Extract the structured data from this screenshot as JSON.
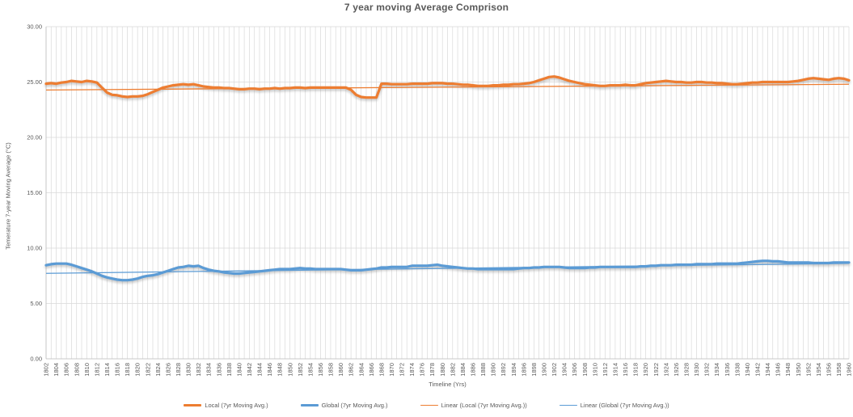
{
  "colors": {
    "local_series": "#ED7D31",
    "global_series": "#5B9BD5",
    "gridline": "#D9D9D9",
    "axis_line": "#BFBFBF",
    "text": "#595959"
  },
  "chart_data": {
    "type": "line",
    "title": "7 year moving Average Comprison",
    "xlabel": "Timeline (Yrs)",
    "ylabel": "Temerature 7-year Moving Average (°C)",
    "x_start": 1802,
    "x_end": 1960,
    "x_step": 1,
    "ylim": [
      0,
      30
    ],
    "ytick_step": 5,
    "y_ticks": [
      "0.00",
      "5.00",
      "10.00",
      "15.00",
      "20.00",
      "25.00",
      "30.00"
    ],
    "x_ticks": [
      "1802",
      "1804",
      "1806",
      "1808",
      "1810",
      "1812",
      "1814",
      "1816",
      "1818",
      "1820",
      "1822",
      "1824",
      "1826",
      "1828",
      "1830",
      "1832",
      "1834",
      "1836",
      "1838",
      "1840",
      "1842",
      "1844",
      "1846",
      "1848",
      "1850",
      "1852",
      "1854",
      "1856",
      "1858",
      "1860",
      "1862",
      "1864",
      "1866",
      "1868",
      "1870",
      "1872",
      "1874",
      "1876",
      "1878",
      "1880",
      "1882",
      "1884",
      "1886",
      "1888",
      "1890",
      "1892",
      "1894",
      "1896",
      "1898",
      "1900",
      "1902",
      "1904",
      "1906",
      "1908",
      "1910",
      "1912",
      "1914",
      "1916",
      "1918",
      "1920",
      "1922",
      "1924",
      "1926",
      "1928",
      "1930",
      "1932",
      "1934",
      "1936",
      "1938",
      "1940",
      "1942",
      "1944",
      "1946",
      "1948",
      "1950",
      "1952",
      "1954",
      "1956",
      "1958",
      "1960"
    ],
    "grid": true,
    "legend_position": "bottom",
    "series": [
      {
        "name": "Local (7yr Moving Avg.)",
        "color": "#ED7D31",
        "line_width": 3.2,
        "values": [
          24.85,
          24.9,
          24.85,
          24.95,
          25.0,
          25.1,
          25.05,
          25.0,
          25.1,
          25.05,
          24.95,
          24.5,
          24.05,
          23.85,
          23.8,
          23.7,
          23.65,
          23.7,
          23.7,
          23.75,
          23.9,
          24.1,
          24.3,
          24.5,
          24.6,
          24.7,
          24.75,
          24.8,
          24.75,
          24.8,
          24.7,
          24.6,
          24.55,
          24.5,
          24.5,
          24.45,
          24.45,
          24.4,
          24.35,
          24.35,
          24.4,
          24.4,
          24.35,
          24.4,
          24.4,
          24.45,
          24.4,
          24.45,
          24.45,
          24.5,
          24.5,
          24.45,
          24.5,
          24.5,
          24.5,
          24.5,
          24.5,
          24.5,
          24.5,
          24.5,
          24.3,
          23.85,
          23.65,
          23.6,
          23.6,
          23.6,
          24.85,
          24.85,
          24.8,
          24.8,
          24.8,
          24.8,
          24.85,
          24.85,
          24.85,
          24.85,
          24.9,
          24.9,
          24.9,
          24.85,
          24.85,
          24.8,
          24.75,
          24.75,
          24.7,
          24.65,
          24.65,
          24.65,
          24.7,
          24.7,
          24.75,
          24.75,
          24.8,
          24.8,
          24.85,
          24.9,
          25.0,
          25.15,
          25.3,
          25.45,
          25.5,
          25.4,
          25.25,
          25.1,
          25.0,
          24.9,
          24.8,
          24.75,
          24.7,
          24.65,
          24.65,
          24.7,
          24.7,
          24.7,
          24.75,
          24.7,
          24.7,
          24.8,
          24.9,
          24.95,
          25.0,
          25.05,
          25.1,
          25.05,
          25.0,
          25.0,
          24.95,
          24.95,
          25.0,
          25.0,
          24.95,
          24.95,
          24.9,
          24.9,
          24.85,
          24.8,
          24.8,
          24.85,
          24.9,
          24.95,
          24.95,
          25.0,
          25.0,
          25.0,
          25.0,
          25.0,
          25.0,
          25.05,
          25.1,
          25.2,
          25.3,
          25.35,
          25.3,
          25.25,
          25.2,
          25.3,
          25.35,
          25.3,
          25.15
        ]
      },
      {
        "name": "Global (7yr Moving Avg.)",
        "color": "#5B9BD5",
        "line_width": 3.2,
        "values": [
          8.45,
          8.55,
          8.6,
          8.6,
          8.6,
          8.5,
          8.35,
          8.2,
          8.05,
          7.9,
          7.7,
          7.5,
          7.35,
          7.25,
          7.15,
          7.1,
          7.1,
          7.15,
          7.25,
          7.4,
          7.5,
          7.55,
          7.65,
          7.8,
          7.95,
          8.1,
          8.25,
          8.3,
          8.4,
          8.35,
          8.4,
          8.2,
          8.05,
          7.95,
          7.9,
          7.8,
          7.75,
          7.7,
          7.7,
          7.75,
          7.8,
          7.85,
          7.9,
          7.95,
          8.0,
          8.05,
          8.1,
          8.1,
          8.1,
          8.15,
          8.2,
          8.15,
          8.15,
          8.1,
          8.1,
          8.1,
          8.1,
          8.1,
          8.1,
          8.05,
          8.0,
          8.0,
          8.0,
          8.05,
          8.1,
          8.15,
          8.25,
          8.25,
          8.3,
          8.3,
          8.3,
          8.3,
          8.4,
          8.4,
          8.4,
          8.4,
          8.45,
          8.5,
          8.4,
          8.35,
          8.3,
          8.25,
          8.2,
          8.15,
          8.15,
          8.1,
          8.1,
          8.1,
          8.1,
          8.1,
          8.1,
          8.1,
          8.1,
          8.15,
          8.2,
          8.2,
          8.25,
          8.25,
          8.3,
          8.3,
          8.3,
          8.3,
          8.25,
          8.2,
          8.2,
          8.2,
          8.2,
          8.25,
          8.25,
          8.3,
          8.3,
          8.3,
          8.3,
          8.3,
          8.3,
          8.3,
          8.3,
          8.35,
          8.35,
          8.4,
          8.4,
          8.45,
          8.45,
          8.45,
          8.5,
          8.5,
          8.5,
          8.5,
          8.55,
          8.55,
          8.55,
          8.55,
          8.6,
          8.6,
          8.6,
          8.6,
          8.6,
          8.65,
          8.7,
          8.75,
          8.8,
          8.85,
          8.85,
          8.8,
          8.8,
          8.75,
          8.7,
          8.7,
          8.7,
          8.7,
          8.7,
          8.65,
          8.65,
          8.65,
          8.65,
          8.7,
          8.7,
          8.7,
          8.7
        ]
      },
      {
        "name": "Linear (Local (7yr Moving Avg.))",
        "color": "#ED7D31",
        "line_width": 1.3,
        "trend": [
          24.28,
          24.8
        ]
      },
      {
        "name": "Linear (Global (7yr Moving Avg.))",
        "color": "#5B9BD5",
        "line_width": 1.3,
        "trend": [
          7.72,
          8.62
        ]
      }
    ]
  }
}
